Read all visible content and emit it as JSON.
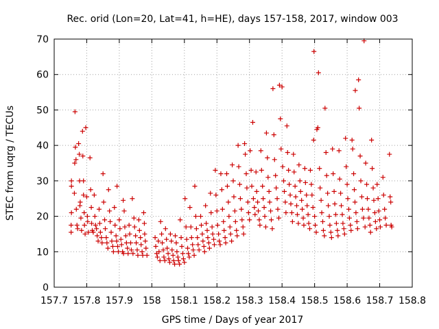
{
  "chart_data": {
    "type": "scatter",
    "title": "Rec. orid (Lon=20, Lat=41, h=HE), days 157-158, 2017, window 003",
    "xlabel": "GPS time / Days of year 2017",
    "ylabel": "STEC from uqrg / TECUs",
    "xlim": [
      157.7,
      158.8
    ],
    "ylim": [
      0,
      70
    ],
    "x_ticks": [
      157.7,
      157.8,
      157.9,
      158.0,
      158.1,
      158.2,
      158.3,
      158.4,
      158.5,
      158.6,
      158.7,
      158.8
    ],
    "x_tick_labels": [
      "157.7",
      "157.8",
      "157.9",
      "158",
      "158.1",
      "158.2",
      "158.3",
      "158.4",
      "158.5",
      "158.6",
      "158.7",
      "158.8"
    ],
    "y_ticks": [
      0,
      10,
      20,
      30,
      40,
      50,
      60,
      70
    ],
    "y_tick_labels": [
      "0",
      "10",
      "20",
      "30",
      "40",
      "50",
      "60",
      "70"
    ],
    "grid": true,
    "legend": "none",
    "marker": "plus",
    "color": "#cc0000",
    "points": [
      [
        157.752,
        15.5
      ],
      [
        157.752,
        17.5
      ],
      [
        157.753,
        21
      ],
      [
        157.753,
        28.5
      ],
      [
        157.753,
        30
      ],
      [
        157.762,
        26.5
      ],
      [
        157.763,
        35
      ],
      [
        157.764,
        49.5
      ],
      [
        157.765,
        39.5
      ],
      [
        157.767,
        36
      ],
      [
        157.768,
        22
      ],
      [
        157.77,
        17.5
      ],
      [
        157.772,
        16.5
      ],
      [
        157.775,
        40.5
      ],
      [
        157.777,
        37.5
      ],
      [
        157.778,
        30
      ],
      [
        157.779,
        23
      ],
      [
        157.78,
        24
      ],
      [
        157.782,
        19.5
      ],
      [
        157.784,
        16
      ],
      [
        157.787,
        44
      ],
      [
        157.788,
        37
      ],
      [
        157.79,
        26
      ],
      [
        157.79,
        30
      ],
      [
        157.792,
        21
      ],
      [
        157.793,
        17.5
      ],
      [
        157.795,
        15
      ],
      [
        157.797,
        45
      ],
      [
        157.8,
        25.5
      ],
      [
        157.802,
        20
      ],
      [
        157.803,
        18.5
      ],
      [
        157.805,
        15.5
      ],
      [
        157.81,
        36.5
      ],
      [
        157.812,
        27.5
      ],
      [
        157.814,
        22.5
      ],
      [
        157.815,
        18
      ],
      [
        157.817,
        16
      ],
      [
        157.82,
        15.5
      ],
      [
        157.823,
        26
      ],
      [
        157.825,
        20
      ],
      [
        157.827,
        17.5
      ],
      [
        157.83,
        16.5
      ],
      [
        157.832,
        14.5
      ],
      [
        157.835,
        13
      ],
      [
        157.838,
        22
      ],
      [
        157.84,
        18
      ],
      [
        157.842,
        15.5
      ],
      [
        157.845,
        14
      ],
      [
        157.847,
        12.5
      ],
      [
        157.85,
        32
      ],
      [
        157.852,
        24
      ],
      [
        157.855,
        19
      ],
      [
        157.857,
        16.5
      ],
      [
        157.86,
        14
      ],
      [
        157.862,
        12.5
      ],
      [
        157.865,
        11
      ],
      [
        157.867,
        27.5
      ],
      [
        157.87,
        21.5
      ],
      [
        157.872,
        18.5
      ],
      [
        157.875,
        15.5
      ],
      [
        157.877,
        13
      ],
      [
        157.88,
        11.5
      ],
      [
        157.882,
        10
      ],
      [
        157.885,
        22.5
      ],
      [
        157.887,
        17.5
      ],
      [
        157.89,
        14.5
      ],
      [
        157.892,
        13
      ],
      [
        157.893,
        28.5
      ],
      [
        157.895,
        11.5
      ],
      [
        157.897,
        10
      ],
      [
        157.9,
        19
      ],
      [
        157.902,
        16.5
      ],
      [
        157.905,
        13.5
      ],
      [
        157.907,
        12
      ],
      [
        157.91,
        10
      ],
      [
        157.912,
        24.5
      ],
      [
        157.913,
        9.5
      ],
      [
        157.915,
        21.5
      ],
      [
        157.917,
        17
      ],
      [
        157.92,
        14.5
      ],
      [
        157.922,
        12.5
      ],
      [
        157.925,
        11
      ],
      [
        157.927,
        9.5
      ],
      [
        157.93,
        17.5
      ],
      [
        157.932,
        15
      ],
      [
        157.935,
        12.5
      ],
      [
        157.937,
        10.5
      ],
      [
        157.94,
        25
      ],
      [
        157.942,
        9.5
      ],
      [
        157.945,
        19.5
      ],
      [
        157.947,
        17
      ],
      [
        157.95,
        14.5
      ],
      [
        157.952,
        12.5
      ],
      [
        157.955,
        10.5
      ],
      [
        157.957,
        9
      ],
      [
        157.96,
        19
      ],
      [
        157.962,
        16
      ],
      [
        157.965,
        14
      ],
      [
        157.967,
        12
      ],
      [
        157.97,
        10
      ],
      [
        157.972,
        9
      ],
      [
        157.975,
        21
      ],
      [
        157.977,
        18
      ],
      [
        157.978,
        15
      ],
      [
        157.98,
        13
      ],
      [
        157.982,
        11
      ],
      [
        157.985,
        9
      ],
      [
        158.01,
        14
      ],
      [
        158.012,
        11.5
      ],
      [
        158.015,
        9.5
      ],
      [
        158.017,
        8.5
      ],
      [
        158.02,
        13
      ],
      [
        158.022,
        10
      ],
      [
        158.025,
        7.5
      ],
      [
        158.027,
        18.5
      ],
      [
        158.03,
        15
      ],
      [
        158.032,
        12.5
      ],
      [
        158.035,
        10.5
      ],
      [
        158.037,
        8.5
      ],
      [
        158.04,
        7.5
      ],
      [
        158.042,
        16.5
      ],
      [
        158.045,
        13.5
      ],
      [
        158.047,
        11
      ],
      [
        158.05,
        9.5
      ],
      [
        158.052,
        8
      ],
      [
        158.055,
        7
      ],
      [
        158.057,
        15
      ],
      [
        158.06,
        13
      ],
      [
        158.062,
        10.5
      ],
      [
        158.065,
        9
      ],
      [
        158.067,
        7.5
      ],
      [
        158.07,
        6.5
      ],
      [
        158.072,
        14.5
      ],
      [
        158.075,
        12.5
      ],
      [
        158.077,
        10
      ],
      [
        158.08,
        8.5
      ],
      [
        158.082,
        7.5
      ],
      [
        158.085,
        6.5
      ],
      [
        158.087,
        19
      ],
      [
        158.09,
        14
      ],
      [
        158.092,
        11.5
      ],
      [
        158.095,
        9.5
      ],
      [
        158.097,
        8
      ],
      [
        158.1,
        7
      ],
      [
        158.102,
        25
      ],
      [
        158.105,
        17
      ],
      [
        158.107,
        13.5
      ],
      [
        158.11,
        11
      ],
      [
        158.112,
        9.5
      ],
      [
        158.115,
        8.5
      ],
      [
        158.117,
        22.5
      ],
      [
        158.12,
        17
      ],
      [
        158.122,
        14
      ],
      [
        158.125,
        12
      ],
      [
        158.127,
        10.5
      ],
      [
        158.13,
        9
      ],
      [
        158.132,
        28.5
      ],
      [
        158.135,
        20
      ],
      [
        158.137,
        16.5
      ],
      [
        158.14,
        14
      ],
      [
        158.142,
        12
      ],
      [
        158.145,
        10.5
      ],
      [
        158.15,
        20
      ],
      [
        158.152,
        17.5
      ],
      [
        158.155,
        15
      ],
      [
        158.157,
        13
      ],
      [
        158.16,
        11.5
      ],
      [
        158.162,
        10
      ],
      [
        158.165,
        23
      ],
      [
        158.167,
        18
      ],
      [
        158.17,
        16
      ],
      [
        158.172,
        14
      ],
      [
        158.175,
        12.5
      ],
      [
        158.177,
        11
      ],
      [
        158.18,
        26.5
      ],
      [
        158.182,
        21
      ],
      [
        158.185,
        17
      ],
      [
        158.187,
        15
      ],
      [
        158.19,
        13.5
      ],
      [
        158.192,
        12
      ],
      [
        158.195,
        33
      ],
      [
        158.197,
        26
      ],
      [
        158.2,
        21.5
      ],
      [
        158.202,
        17.5
      ],
      [
        158.205,
        15
      ],
      [
        158.207,
        13
      ],
      [
        158.21,
        12
      ],
      [
        158.212,
        32
      ],
      [
        158.215,
        27.5
      ],
      [
        158.217,
        22
      ],
      [
        158.22,
        18.5
      ],
      [
        158.222,
        16
      ],
      [
        158.225,
        14
      ],
      [
        158.227,
        12.5
      ],
      [
        158.23,
        32
      ],
      [
        158.232,
        28.5
      ],
      [
        158.235,
        24
      ],
      [
        158.237,
        20
      ],
      [
        158.24,
        17
      ],
      [
        158.242,
        15
      ],
      [
        158.245,
        13
      ],
      [
        158.247,
        34.5
      ],
      [
        158.25,
        30
      ],
      [
        158.252,
        25.5
      ],
      [
        158.255,
        21.5
      ],
      [
        158.257,
        18.5
      ],
      [
        158.26,
        16
      ],
      [
        158.262,
        14.5
      ],
      [
        158.265,
        40
      ],
      [
        158.267,
        34
      ],
      [
        158.27,
        29
      ],
      [
        158.272,
        25
      ],
      [
        158.275,
        22
      ],
      [
        158.277,
        19
      ],
      [
        158.28,
        17
      ],
      [
        158.282,
        15
      ],
      [
        158.285,
        40.5
      ],
      [
        158.287,
        37.5
      ],
      [
        158.29,
        32
      ],
      [
        158.292,
        28
      ],
      [
        158.295,
        24
      ],
      [
        158.297,
        21
      ],
      [
        158.3,
        19
      ],
      [
        158.302,
        38.5
      ],
      [
        158.305,
        33
      ],
      [
        158.307,
        28.5
      ],
      [
        158.31,
        46.5
      ],
      [
        158.312,
        25
      ],
      [
        158.315,
        22.5
      ],
      [
        158.317,
        20.5
      ],
      [
        158.32,
        32.5
      ],
      [
        158.322,
        27
      ],
      [
        158.325,
        24
      ],
      [
        158.327,
        21.5
      ],
      [
        158.33,
        19
      ],
      [
        158.332,
        17.5
      ],
      [
        158.335,
        38.5
      ],
      [
        158.337,
        33
      ],
      [
        158.34,
        28.5
      ],
      [
        158.342,
        25
      ],
      [
        158.345,
        22.5
      ],
      [
        158.347,
        20
      ],
      [
        158.35,
        17
      ],
      [
        158.352,
        43.5
      ],
      [
        158.355,
        36.5
      ],
      [
        158.357,
        31
      ],
      [
        158.36,
        27
      ],
      [
        158.362,
        24
      ],
      [
        158.365,
        21.5
      ],
      [
        158.367,
        19
      ],
      [
        158.37,
        16.5
      ],
      [
        158.372,
        56
      ],
      [
        158.375,
        43
      ],
      [
        158.377,
        36
      ],
      [
        158.38,
        31.5
      ],
      [
        158.382,
        28
      ],
      [
        158.385,
        25
      ],
      [
        158.387,
        22
      ],
      [
        158.39,
        19.5
      ],
      [
        158.392,
        57
      ],
      [
        158.395,
        47.5
      ],
      [
        158.397,
        39
      ],
      [
        158.4,
        56.5
      ],
      [
        158.402,
        34
      ],
      [
        158.405,
        30
      ],
      [
        158.407,
        27
      ],
      [
        158.41,
        24
      ],
      [
        158.412,
        21
      ],
      [
        158.415,
        45.5
      ],
      [
        158.417,
        38
      ],
      [
        158.42,
        33
      ],
      [
        158.422,
        29
      ],
      [
        158.425,
        26
      ],
      [
        158.427,
        23.5
      ],
      [
        158.43,
        21
      ],
      [
        158.432,
        18.5
      ],
      [
        158.435,
        37.5
      ],
      [
        158.437,
        32.5
      ],
      [
        158.44,
        28.5
      ],
      [
        158.442,
        25.5
      ],
      [
        158.445,
        23
      ],
      [
        158.447,
        20.5
      ],
      [
        158.45,
        18
      ],
      [
        158.452,
        34.5
      ],
      [
        158.455,
        30
      ],
      [
        158.457,
        27
      ],
      [
        158.46,
        24.5
      ],
      [
        158.462,
        22
      ],
      [
        158.465,
        19.5
      ],
      [
        158.467,
        17.5
      ],
      [
        158.47,
        33.5
      ],
      [
        158.472,
        29.5
      ],
      [
        158.475,
        26
      ],
      [
        158.477,
        23
      ],
      [
        158.48,
        20.5
      ],
      [
        158.482,
        18
      ],
      [
        158.485,
        16.5
      ],
      [
        158.487,
        33
      ],
      [
        158.49,
        29
      ],
      [
        158.492,
        26
      ],
      [
        158.495,
        22.5
      ],
      [
        158.497,
        41.5
      ],
      [
        158.498,
        66.5
      ],
      [
        158.5,
        20
      ],
      [
        158.502,
        17.5
      ],
      [
        158.505,
        15.5
      ],
      [
        158.507,
        44.5
      ],
      [
        158.51,
        45
      ],
      [
        158.512,
        60.5
      ],
      [
        158.515,
        33.5
      ],
      [
        158.517,
        28
      ],
      [
        158.52,
        24.5
      ],
      [
        158.522,
        21
      ],
      [
        158.525,
        18.5
      ],
      [
        158.527,
        16
      ],
      [
        158.53,
        14.5
      ],
      [
        158.532,
        50.5
      ],
      [
        158.535,
        38
      ],
      [
        158.537,
        31.5
      ],
      [
        158.54,
        26.5
      ],
      [
        158.542,
        23
      ],
      [
        158.545,
        20
      ],
      [
        158.547,
        17.5
      ],
      [
        158.55,
        15.5
      ],
      [
        158.552,
        14
      ],
      [
        158.555,
        39
      ],
      [
        158.557,
        32
      ],
      [
        158.56,
        27
      ],
      [
        158.562,
        23.5
      ],
      [
        158.565,
        20.5
      ],
      [
        158.567,
        18
      ],
      [
        158.57,
        16
      ],
      [
        158.572,
        14.5
      ],
      [
        158.575,
        38.5
      ],
      [
        158.577,
        30.5
      ],
      [
        158.58,
        26.5
      ],
      [
        158.582,
        23
      ],
      [
        158.585,
        20.5
      ],
      [
        158.587,
        18
      ],
      [
        158.59,
        16.5
      ],
      [
        158.592,
        15
      ],
      [
        158.595,
        42
      ],
      [
        158.597,
        34
      ],
      [
        158.6,
        29
      ],
      [
        158.602,
        25
      ],
      [
        158.605,
        22
      ],
      [
        158.607,
        19.5
      ],
      [
        158.61,
        17.5
      ],
      [
        158.612,
        16
      ],
      [
        158.615,
        41.5
      ],
      [
        158.617,
        39
      ],
      [
        158.62,
        32
      ],
      [
        158.622,
        27.5
      ],
      [
        158.624,
        24
      ],
      [
        158.625,
        55.5
      ],
      [
        158.627,
        21
      ],
      [
        158.63,
        18.5
      ],
      [
        158.632,
        16.5
      ],
      [
        158.635,
        58.5
      ],
      [
        158.637,
        50.5
      ],
      [
        158.64,
        37
      ],
      [
        158.642,
        30
      ],
      [
        158.645,
        25.5
      ],
      [
        158.647,
        22
      ],
      [
        158.65,
        19.5
      ],
      [
        158.652,
        69.5
      ],
      [
        158.655,
        17
      ],
      [
        158.657,
        35
      ],
      [
        158.66,
        29
      ],
      [
        158.662,
        25
      ],
      [
        158.665,
        22
      ],
      [
        158.667,
        19.5
      ],
      [
        158.67,
        17.5
      ],
      [
        158.672,
        15.5
      ],
      [
        158.675,
        41.5
      ],
      [
        158.677,
        33.5
      ],
      [
        158.68,
        28
      ],
      [
        158.682,
        24.5
      ],
      [
        158.685,
        21
      ],
      [
        158.687,
        18.5
      ],
      [
        158.69,
        16.5
      ],
      [
        158.692,
        29
      ],
      [
        158.695,
        25
      ],
      [
        158.697,
        21.5
      ],
      [
        158.7,
        19
      ],
      [
        158.702,
        17
      ],
      [
        158.71,
        31
      ],
      [
        158.712,
        26
      ],
      [
        158.715,
        22
      ],
      [
        158.717,
        19.5
      ],
      [
        158.72,
        17.5
      ],
      [
        158.73,
        37.5
      ],
      [
        158.732,
        25.5
      ],
      [
        158.734,
        24
      ],
      [
        158.735,
        17.5
      ],
      [
        158.737,
        17
      ]
    ]
  }
}
